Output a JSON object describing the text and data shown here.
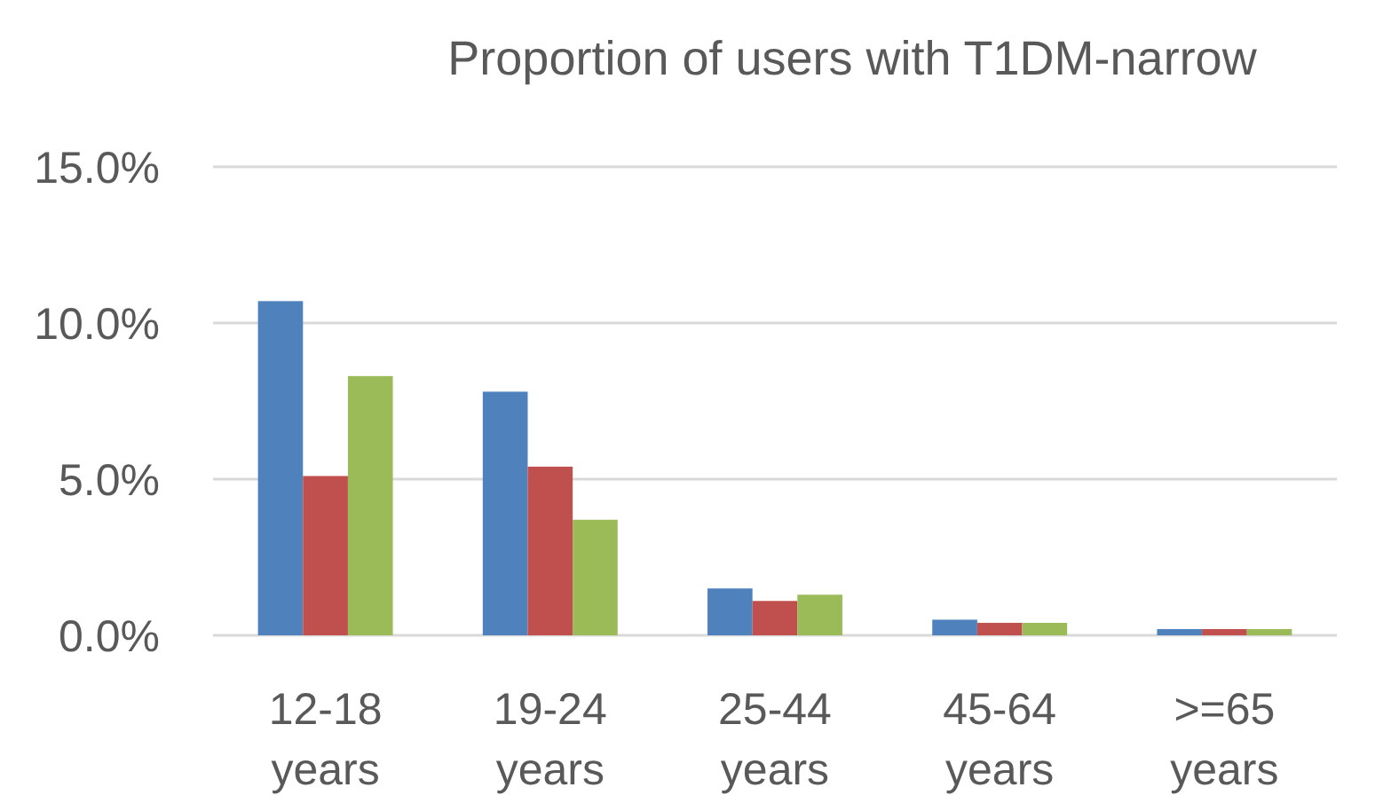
{
  "chart_data": {
    "type": "bar",
    "title": "Proportion of users with T1DM-narrow",
    "categories": [
      "12-18 years",
      "19-24 years",
      "25-44 years",
      "45-64 years",
      ">=65 years"
    ],
    "series": [
      {
        "color": "#4f81bd",
        "values": [
          10.7,
          7.8,
          1.5,
          0.5,
          0.2
        ]
      },
      {
        "color": "#c0504d",
        "values": [
          5.1,
          5.4,
          1.1,
          0.4,
          0.2
        ]
      },
      {
        "color": "#9bbb59",
        "values": [
          8.3,
          3.7,
          1.3,
          0.4,
          0.2
        ]
      }
    ],
    "ylim": [
      0,
      15
    ],
    "yticks": [
      {
        "value": 0,
        "label": "0.0%"
      },
      {
        "value": 5,
        "label": "5.0%"
      },
      {
        "value": 10,
        "label": "10.0%"
      },
      {
        "value": 15,
        "label": "15.0%"
      }
    ],
    "grid": "y"
  }
}
